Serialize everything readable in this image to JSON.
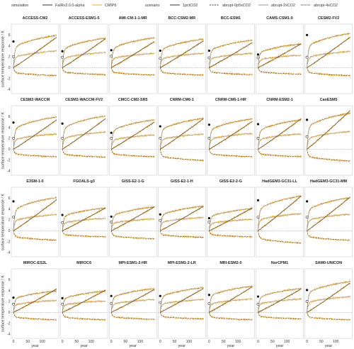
{
  "chart_data": {
    "type": "line",
    "legend": {
      "simulation_label": "simulation",
      "simulation_items": [
        "FaIRv2.0.0-alpha",
        "CMIP6"
      ],
      "scenario_label": "scenario",
      "scenario_items": [
        "1pctCO2",
        "abrupt-0p5xCO2",
        "abrupt-2xCO2",
        "abrupt-4xCO2"
      ],
      "colors": {
        "FaIRv2.0.0-alpha": "#333333",
        "CMIP6": "#f5a623"
      },
      "placement": "top"
    },
    "ylabel": "surface temperature response / K",
    "xlabel": "year",
    "xticks": [
      0,
      50,
      100
    ],
    "yticks": [
      -4,
      -2,
      0,
      2,
      4,
      6
    ],
    "xlim": [
      0,
      150
    ],
    "ylim": [
      -4.8,
      8
    ],
    "zero_line": true,
    "panels": [
      {
        "model": "ACCESS-CM2",
        "abrupt4x": 6.8,
        "one_pct": 5.6,
        "abrupt2x": 3.5,
        "half": -1.7,
        "dot_open": 2.0,
        "dot_filled": 4.8
      },
      {
        "model": "ACCESS-ESM1-5",
        "abrupt4x": 6.2,
        "one_pct": 5.3,
        "abrupt2x": 3.2,
        "half": -1.5,
        "dot_open": 1.9,
        "dot_filled": 3.0
      },
      {
        "model": "AWI-CM-1-1-MR",
        "abrupt4x": 6.3,
        "one_pct": 4.8,
        "abrupt2x": 3.0,
        "half": -1.6,
        "dot_open": 2.1,
        "dot_filled": 3.2
      },
      {
        "model": "BCC-CSM2-MR",
        "abrupt4x": 6.0,
        "one_pct": 4.9,
        "abrupt2x": 3.0,
        "half": -1.6,
        "dot_open": 1.7,
        "dot_filled": 3.1
      },
      {
        "model": "BCC-ESM1",
        "abrupt4x": 5.8,
        "one_pct": 4.6,
        "abrupt2x": 3.0,
        "half": -1.5,
        "dot_open": 1.8,
        "dot_filled": 3.1
      },
      {
        "model": "CAMS-CSM1-0",
        "abrupt4x": 5.0,
        "one_pct": 4.4,
        "abrupt2x": 2.6,
        "half": -1.4,
        "dot_open": 1.8,
        "dot_filled": 2.4
      },
      {
        "model": "CESM2-FV2",
        "abrupt4x": 7.2,
        "one_pct": 5.6,
        "abrupt2x": 3.4,
        "half": -1.7,
        "dot_open": 1.9,
        "dot_filled": 6.0
      },
      {
        "model": "CESM2-WACCM",
        "abrupt4x": 6.8,
        "one_pct": 5.4,
        "abrupt2x": 3.2,
        "half": -1.6,
        "dot_open": 2.0,
        "dot_filled": 4.9
      },
      {
        "model": "CESM2-WACCM-FV2",
        "abrupt4x": 7.0,
        "one_pct": 5.6,
        "abrupt2x": 3.6,
        "half": -1.7,
        "dot_open": 2.0,
        "dot_filled": 4.7
      },
      {
        "model": "CMCC-CM2-SR5",
        "abrupt4x": 6.2,
        "one_pct": 5.0,
        "abrupt2x": 3.0,
        "half": -1.6,
        "dot_open": 2.0,
        "dot_filled": 3.0
      },
      {
        "model": "CNRM-CM6-1",
        "abrupt4x": 6.5,
        "one_pct": 5.6,
        "abrupt2x": 3.2,
        "half": -2.4,
        "dot_open": 2.0,
        "dot_filled": 4.2
      },
      {
        "model": "CNRM-CM6-1-HR",
        "abrupt4x": 6.4,
        "one_pct": 5.1,
        "abrupt2x": 3.3,
        "half": -1.6,
        "dot_open": 2.0,
        "dot_filled": 4.5
      },
      {
        "model": "CNRM-ESM2-1",
        "abrupt4x": 6.2,
        "one_pct": 5.6,
        "abrupt2x": 3.2,
        "half": -1.6,
        "dot_open": 2.0,
        "dot_filled": 4.6
      },
      {
        "model": "CanESM5",
        "abrupt4x": 7.6,
        "one_pct": 7.1,
        "abrupt2x": 3.7,
        "half": -2.5,
        "dot_open": 2.3,
        "dot_filled": 5.4
      },
      {
        "model": "E3SM-1-0",
        "abrupt4x": 7.0,
        "one_pct": 5.7,
        "abrupt2x": 3.4,
        "half": -2.0,
        "dot_open": 2.5,
        "dot_filled": 5.4
      },
      {
        "model": "FGOALS-g3",
        "abrupt4x": 4.8,
        "one_pct": 4.2,
        "abrupt2x": 2.6,
        "half": -1.3,
        "dot_open": 1.5,
        "dot_filled": 2.9
      },
      {
        "model": "GISS-E2-1-G",
        "abrupt4x": 5.0,
        "one_pct": 4.4,
        "abrupt2x": 2.5,
        "half": -1.7,
        "dot_open": 1.6,
        "dot_filled": 2.6
      },
      {
        "model": "GISS-E2-1-H",
        "abrupt4x": 5.2,
        "one_pct": 4.5,
        "abrupt2x": 2.8,
        "half": -1.4,
        "dot_open": 1.9,
        "dot_filled": 3.0
      },
      {
        "model": "GISS-E2-2-G",
        "abrupt4x": 4.7,
        "one_pct": 4.2,
        "abrupt2x": 2.4,
        "half": -1.3,
        "dot_open": 1.6,
        "dot_filled": 2.3
      },
      {
        "model": "HadGEM3-GC31-LL",
        "abrupt4x": 7.3,
        "one_pct": 6.4,
        "abrupt2x": 3.6,
        "half": -2.6,
        "dot_open": 2.5,
        "dot_filled": 5.6
      },
      {
        "model": "HadGEM3-GC31-MM",
        "abrupt4x": 7.0,
        "one_pct": 6.2,
        "abrupt2x": 3.5,
        "half": -2.0,
        "dot_open": 2.5,
        "dot_filled": 5.4
      },
      {
        "model": "MIROC-ES2L",
        "abrupt4x": 4.5,
        "one_pct": 4.3,
        "abrupt2x": 2.5,
        "half": -1.6,
        "dot_open": 1.5,
        "dot_filled": 2.7
      },
      {
        "model": "MIROC6",
        "abrupt4x": 4.5,
        "one_pct": 4.1,
        "abrupt2x": 2.4,
        "half": -1.6,
        "dot_open": 1.5,
        "dot_filled": 2.6
      },
      {
        "model": "MPI-ESM1-2-HR",
        "abrupt4x": 5.0,
        "one_pct": 4.2,
        "abrupt2x": 2.7,
        "half": -1.5,
        "dot_open": 1.6,
        "dot_filled": 3.0
      },
      {
        "model": "MPI-ESM1-2-LR",
        "abrupt4x": 5.2,
        "one_pct": 4.4,
        "abrupt2x": 2.7,
        "half": -1.4,
        "dot_open": 1.8,
        "dot_filled": 3.0
      },
      {
        "model": "MRI-ESM2-0",
        "abrupt4x": 5.5,
        "one_pct": 4.7,
        "abrupt2x": 2.8,
        "half": -1.6,
        "dot_open": 1.6,
        "dot_filled": 3.2
      },
      {
        "model": "NorCPM1",
        "abrupt4x": 5.0,
        "one_pct": 4.3,
        "abrupt2x": 2.8,
        "half": -1.4,
        "dot_open": 1.5,
        "dot_filled": 2.9
      },
      {
        "model": "SAM0-UNICON",
        "abrupt4x": 6.5,
        "one_pct": 5.4,
        "abrupt2x": 3.3,
        "half": -1.6,
        "dot_open": 2.0,
        "dot_filled": 4.1
      }
    ]
  }
}
